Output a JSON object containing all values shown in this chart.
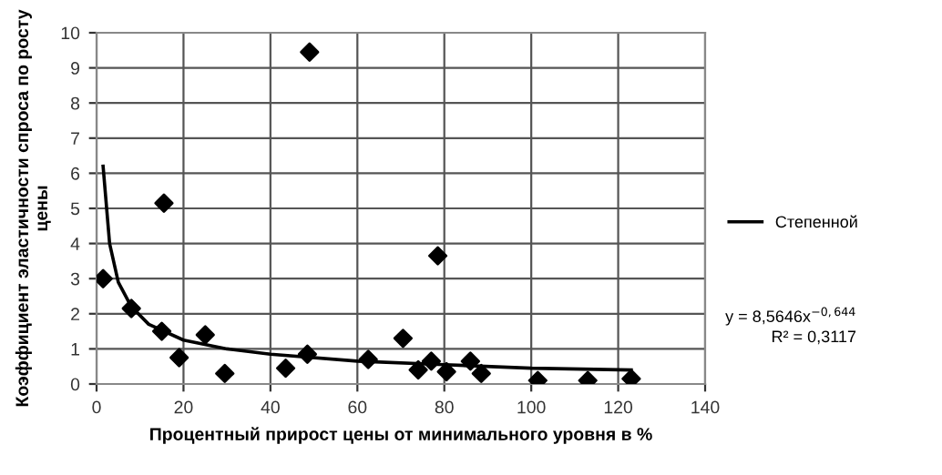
{
  "chart_data": {
    "type": "scatter",
    "xlabel": "Процентный прирост цены от минимального уровня в %",
    "ylabel": "Коэффициент эластичности спроса по росту цены",
    "xlim": [
      0,
      140
    ],
    "xticks": [
      0,
      20,
      40,
      60,
      80,
      100,
      120,
      140
    ],
    "ylim": [
      0,
      10
    ],
    "yticks": [
      0,
      1,
      2,
      3,
      4,
      5,
      6,
      7,
      8,
      9,
      10
    ],
    "grid": true,
    "legend": "right",
    "series": [
      {
        "color": "#000000",
        "marker": "diamond",
        "x": [
          1.5,
          8,
          15,
          15.5,
          19,
          25,
          29.5,
          43.5,
          48.5,
          49,
          62.5,
          70.5,
          74,
          77,
          78.5,
          80.5,
          86,
          88.5,
          101.5,
          113,
          123
        ],
        "values": [
          3.0,
          2.15,
          1.5,
          5.15,
          0.75,
          1.4,
          0.3,
          0.45,
          0.85,
          9.45,
          0.7,
          1.3,
          0.4,
          0.65,
          3.65,
          0.35,
          0.65,
          0.3,
          0.1,
          0.1,
          0.15
        ]
      },
      {
        "type": "line",
        "name": "Степенной",
        "color": "#000000",
        "line_style": "solid",
        "x": [
          1.5,
          3,
          5,
          8,
          12,
          20,
          30,
          40,
          60,
          80,
          100,
          123
        ],
        "values": [
          6.2,
          4.0,
          2.9,
          2.2,
          1.7,
          1.25,
          1.0,
          0.85,
          0.65,
          0.55,
          0.45,
          0.4
        ]
      }
    ],
    "annotations": [
      "y = 8,5646x$^{−0,644}$",
      "R² = 0,3117"
    ]
  }
}
